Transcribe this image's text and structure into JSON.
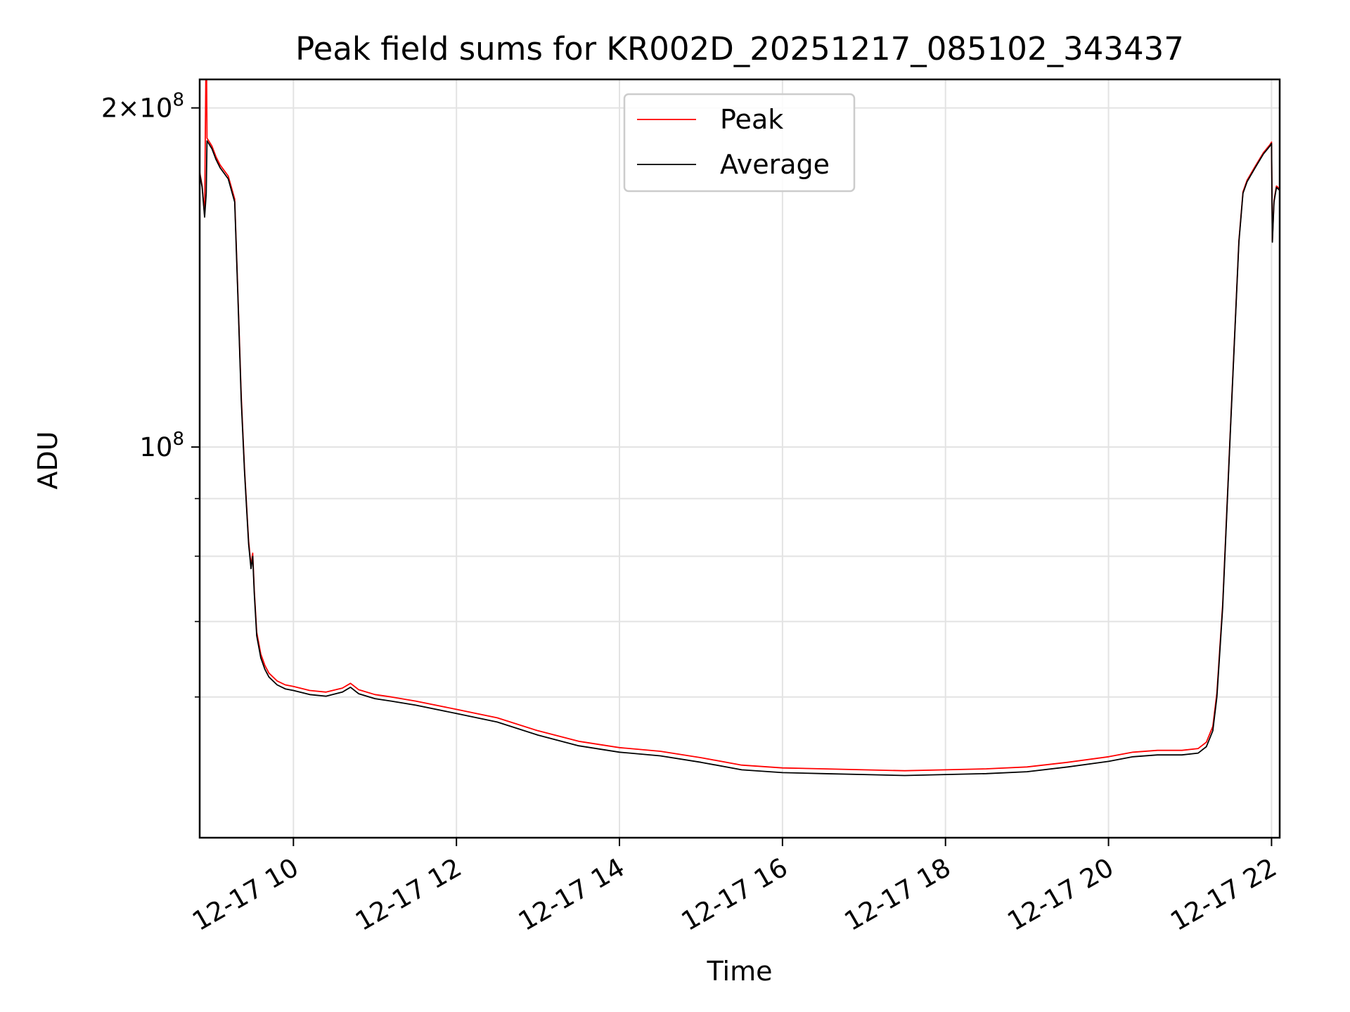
{
  "chart_data": {
    "type": "line",
    "title": "Peak field sums for KR002D_20251217_085102_343437",
    "xlabel": "Time",
    "ylabel": "ADU",
    "yscale": "log",
    "xlim": [
      8.85,
      22.1
    ],
    "ylim": [
      45000000,
      212000000
    ],
    "grid": true,
    "x_ticks": [
      {
        "value": 10,
        "label": "12-17 10"
      },
      {
        "value": 12,
        "label": "12-17 12"
      },
      {
        "value": 14,
        "label": "12-17 14"
      },
      {
        "value": 16,
        "label": "12-17 16"
      },
      {
        "value": 18,
        "label": "12-17 18"
      },
      {
        "value": 20,
        "label": "12-17 20"
      },
      {
        "value": 22,
        "label": "12-17 22"
      }
    ],
    "y_major_ticks": [
      {
        "value": 200000000,
        "label_mantissa": "2×10",
        "label_exp": "8"
      },
      {
        "value": 100000000,
        "label_mantissa": "10",
        "label_exp": "8"
      }
    ],
    "y_minor_ticks": [
      60000000,
      70000000,
      80000000,
      90000000
    ],
    "legend": {
      "position": "upper-center",
      "entries": [
        {
          "label": "Peak",
          "color": "#ff0000"
        },
        {
          "label": "Average",
          "color": "#000000"
        }
      ]
    },
    "series": [
      {
        "name": "Average",
        "color": "#000000",
        "x": [
          8.85,
          8.88,
          8.91,
          8.93,
          8.94,
          8.96,
          9.0,
          9.05,
          9.1,
          9.2,
          9.28,
          9.32,
          9.36,
          9.4,
          9.45,
          9.48,
          9.5,
          9.52,
          9.55,
          9.6,
          9.65,
          9.7,
          9.8,
          9.9,
          10.0,
          10.2,
          10.4,
          10.6,
          10.7,
          10.8,
          11.0,
          11.2,
          11.5,
          12.0,
          12.5,
          13.0,
          13.5,
          14.0,
          14.5,
          15.0,
          15.5,
          16.0,
          16.5,
          17.0,
          17.5,
          18.0,
          18.5,
          19.0,
          19.5,
          20.0,
          20.3,
          20.6,
          20.9,
          21.1,
          21.2,
          21.28,
          21.33,
          21.4,
          21.5,
          21.6,
          21.65,
          21.7,
          21.8,
          21.9,
          21.98,
          22.0,
          22.01,
          22.03,
          22.06,
          22.1
        ],
        "values": [
          175000000,
          170000000,
          160000000,
          168000000,
          187000000,
          186000000,
          184000000,
          180000000,
          177000000,
          173000000,
          165000000,
          135000000,
          110000000,
          95000000,
          82000000,
          78000000,
          80000000,
          74000000,
          68000000,
          65000000,
          63500000,
          62500000,
          61500000,
          61000000,
          60800000,
          60300000,
          60100000,
          60600000,
          61200000,
          60400000,
          59800000,
          59500000,
          59000000,
          58000000,
          57000000,
          55500000,
          54300000,
          53600000,
          53200000,
          52500000,
          51700000,
          51400000,
          51300000,
          51200000,
          51100000,
          51200000,
          51300000,
          51500000,
          52000000,
          52600000,
          53100000,
          53300000,
          53300000,
          53500000,
          54200000,
          56000000,
          60000000,
          72000000,
          105000000,
          152000000,
          168000000,
          172000000,
          177000000,
          182000000,
          185000000,
          186000000,
          152000000,
          165000000,
          170000000,
          169000000
        ]
      },
      {
        "name": "Peak",
        "color": "#ff0000",
        "x": [
          8.85,
          8.88,
          8.91,
          8.925,
          8.935,
          8.94,
          8.96,
          9.0,
          9.05,
          9.1,
          9.2,
          9.28,
          9.32,
          9.36,
          9.4,
          9.45,
          9.48,
          9.5,
          9.52,
          9.55,
          9.6,
          9.65,
          9.7,
          9.8,
          9.9,
          10.0,
          10.2,
          10.4,
          10.6,
          10.7,
          10.8,
          11.0,
          11.2,
          11.5,
          12.0,
          12.5,
          13.0,
          13.5,
          14.0,
          14.5,
          15.0,
          15.5,
          16.0,
          16.5,
          17.0,
          17.5,
          18.0,
          18.5,
          19.0,
          19.5,
          20.0,
          20.3,
          20.6,
          20.9,
          21.1,
          21.2,
          21.28,
          21.33,
          21.4,
          21.5,
          21.6,
          21.65,
          21.7,
          21.8,
          21.9,
          21.98,
          22.0,
          22.01,
          22.03,
          22.06,
          22.1
        ],
        "values": [
          175500000,
          170500000,
          160500000,
          212000000,
          212000000,
          188000000,
          187000000,
          185000000,
          181000000,
          178000000,
          174000000,
          166000000,
          136000000,
          111000000,
          95500000,
          82500000,
          78500000,
          80500000,
          74500000,
          68500000,
          65500000,
          64000000,
          63000000,
          62000000,
          61500000,
          61300000,
          60800000,
          60600000,
          61100000,
          61700000,
          60900000,
          60300000,
          60000000,
          59500000,
          58500000,
          57500000,
          56000000,
          54800000,
          54100000,
          53700000,
          53000000,
          52200000,
          51900000,
          51800000,
          51700000,
          51600000,
          51700000,
          51800000,
          52000000,
          52500000,
          53100000,
          53600000,
          53800000,
          53800000,
          54000000,
          54700000,
          56500000,
          60500000,
          72500000,
          105500000,
          152500000,
          168500000,
          172500000,
          177500000,
          182500000,
          185500000,
          186500000,
          152500000,
          165500000,
          170500000,
          169500000
        ]
      }
    ]
  }
}
